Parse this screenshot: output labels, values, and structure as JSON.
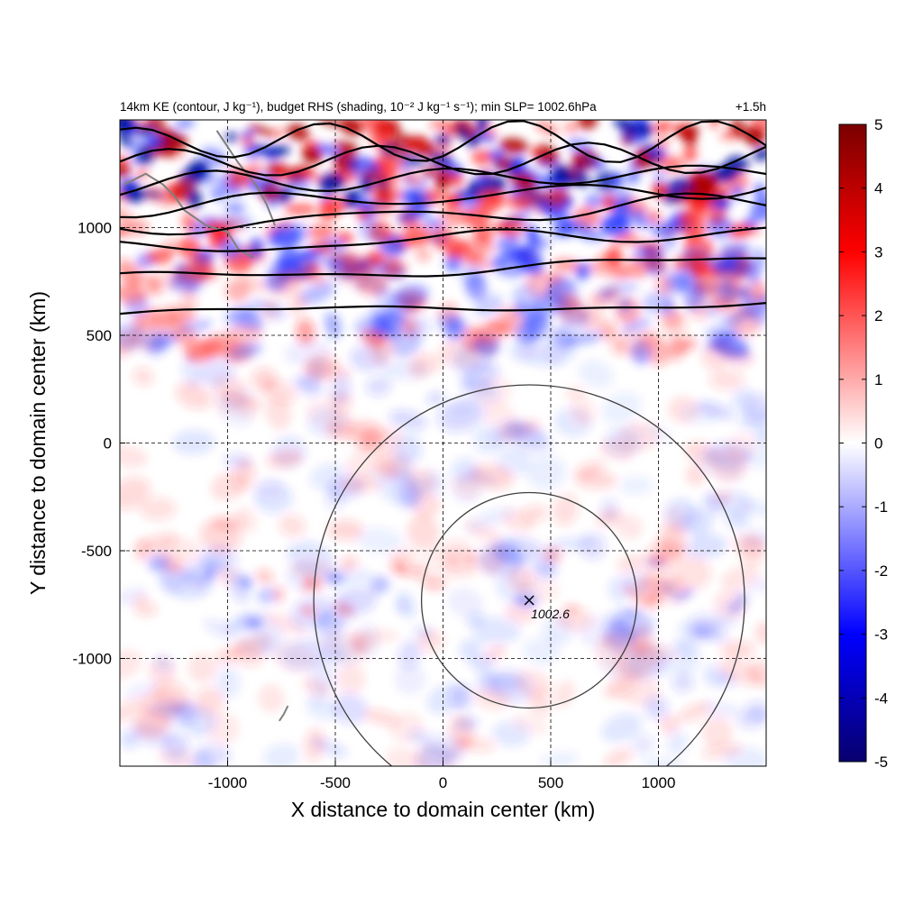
{
  "chart_data": {
    "type": "heatmap",
    "title_left": "14km KE (contour, J kg⁻¹), budget RHS (shading, 10⁻² J kg⁻¹ s⁻¹); min SLP= 1002.6hPa",
    "title_right": "+1.5h",
    "xlabel": "X distance to domain center (km)",
    "ylabel": "Y distance to domain center (km)",
    "xlim": [
      -1500,
      1500
    ],
    "ylim": [
      -1500,
      1500
    ],
    "x_ticks": [
      -1000,
      -500,
      0,
      500,
      1000
    ],
    "x_tick_labels": [
      "-1000",
      "-500",
      "0",
      "500",
      "1000"
    ],
    "y_ticks": [
      1000,
      500,
      0,
      -500,
      -1000
    ],
    "y_tick_labels": [
      "1000",
      "500",
      "0",
      "-500",
      "-1000"
    ],
    "grid": true,
    "colorbar": {
      "range": [
        -5,
        5
      ],
      "ticks": [
        "5",
        "4",
        "3",
        "2",
        "1",
        "0",
        "-1",
        "-2",
        "-3",
        "-4",
        "-5"
      ],
      "colors": [
        "#08006e",
        "#0000ff",
        "#ffffff",
        "#ff0000",
        "#7a0000"
      ]
    },
    "storm_center": {
      "x": 400,
      "y": -730,
      "label": "1002.6"
    },
    "range_rings_km": [
      500,
      1000
    ],
    "ke_contours_y_at_left_km": [
      600,
      760,
      900,
      1000,
      1100,
      1200,
      1300,
      1400
    ],
    "ke_contours_y_at_right_km": [
      650,
      850,
      990,
      1120,
      1190,
      1260,
      1330,
      1400
    ],
    "ke_contour_color": "#000000",
    "coastline_color": "#808080",
    "ring_color": "#404040"
  }
}
